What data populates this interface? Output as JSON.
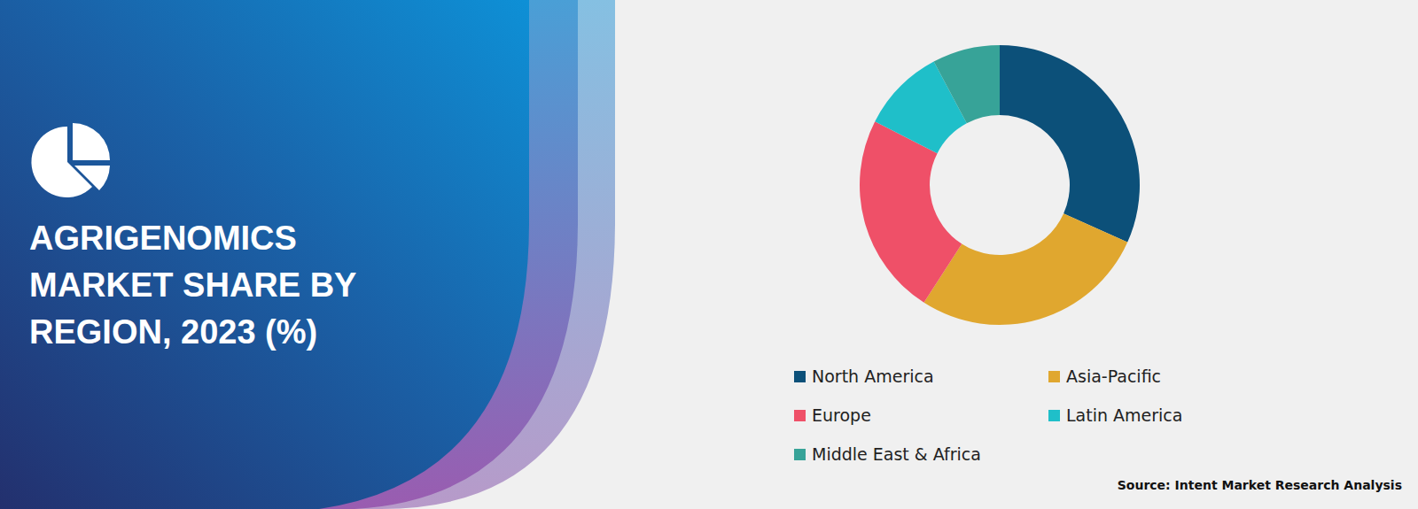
{
  "chart_data": {
    "type": "pie",
    "title": "AGRIGENOMICS MARKET SHARE BY REGION, 2023 (%)",
    "source": "Source: Intent Market Research Analysis",
    "categories": [
      "North America",
      "Asia-Pacific",
      "Europe",
      "Latin America",
      "Middle East & Africa"
    ],
    "values": [
      31.7,
      27.4,
      23.4,
      9.7,
      7.8
    ],
    "colors": [
      "#0c5079",
      "#e0a72f",
      "#ef5068",
      "#1fbfc9",
      "#37a398"
    ]
  }
}
